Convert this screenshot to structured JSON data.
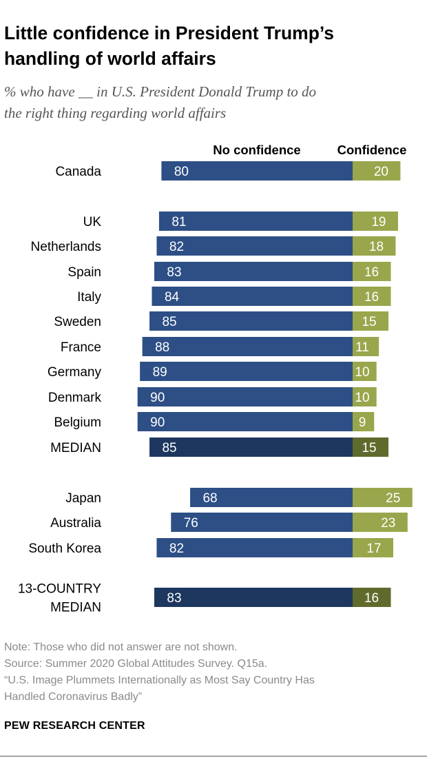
{
  "header": {
    "title_line1": "Little confidence in President Trump’s",
    "title_line2": "handling of world affairs",
    "subtitle_line1": "% who have __ in U.S. President Donald Trump to do",
    "subtitle_line2": "the right thing regarding world affairs"
  },
  "chart_data": {
    "type": "bar",
    "orientation": "horizontal-diverging",
    "series": [
      {
        "name": "No confidence",
        "color": "#2d4f86",
        "median_color": "#1d375f"
      },
      {
        "name": "Confidence",
        "color": "#99a64c",
        "median_color": "#5f6a2c"
      }
    ],
    "rows": [
      {
        "label": [
          "Canada"
        ],
        "no_confidence": 80,
        "confidence": 20,
        "median": false
      },
      {
        "label": [
          "UK"
        ],
        "no_confidence": 81,
        "confidence": 19,
        "median": false
      },
      {
        "label": [
          "Netherlands"
        ],
        "no_confidence": 82,
        "confidence": 18,
        "median": false
      },
      {
        "label": [
          "Spain"
        ],
        "no_confidence": 83,
        "confidence": 16,
        "median": false
      },
      {
        "label": [
          "Italy"
        ],
        "no_confidence": 84,
        "confidence": 16,
        "median": false
      },
      {
        "label": [
          "Sweden"
        ],
        "no_confidence": 85,
        "confidence": 15,
        "median": false
      },
      {
        "label": [
          "France"
        ],
        "no_confidence": 88,
        "confidence": 11,
        "median": false
      },
      {
        "label": [
          "Germany"
        ],
        "no_confidence": 89,
        "confidence": 10,
        "median": false
      },
      {
        "label": [
          "Denmark"
        ],
        "no_confidence": 90,
        "confidence": 10,
        "median": false
      },
      {
        "label": [
          "Belgium"
        ],
        "no_confidence": 90,
        "confidence": 9,
        "median": false
      },
      {
        "label": [
          "MEDIAN"
        ],
        "no_confidence": 85,
        "confidence": 15,
        "median": true
      },
      {
        "label": [
          "Japan"
        ],
        "no_confidence": 68,
        "confidence": 25,
        "median": false
      },
      {
        "label": [
          "Australia"
        ],
        "no_confidence": 76,
        "confidence": 23,
        "median": false
      },
      {
        "label": [
          "South Korea"
        ],
        "no_confidence": 82,
        "confidence": 17,
        "median": false
      },
      {
        "label": [
          "13-COUNTRY",
          "MEDIAN"
        ],
        "no_confidence": 83,
        "confidence": 16,
        "median": true
      }
    ]
  },
  "footer": {
    "note": "Note: Those who did not answer are not shown.",
    "source": "Source: Summer 2020 Global Attitudes Survey. Q15a.",
    "report_line1": "“U.S. Image Plummets Internationally as Most Say Country Has",
    "report_line2": "Handled Coronavirus Badly”",
    "org": "PEW RESEARCH CENTER"
  }
}
